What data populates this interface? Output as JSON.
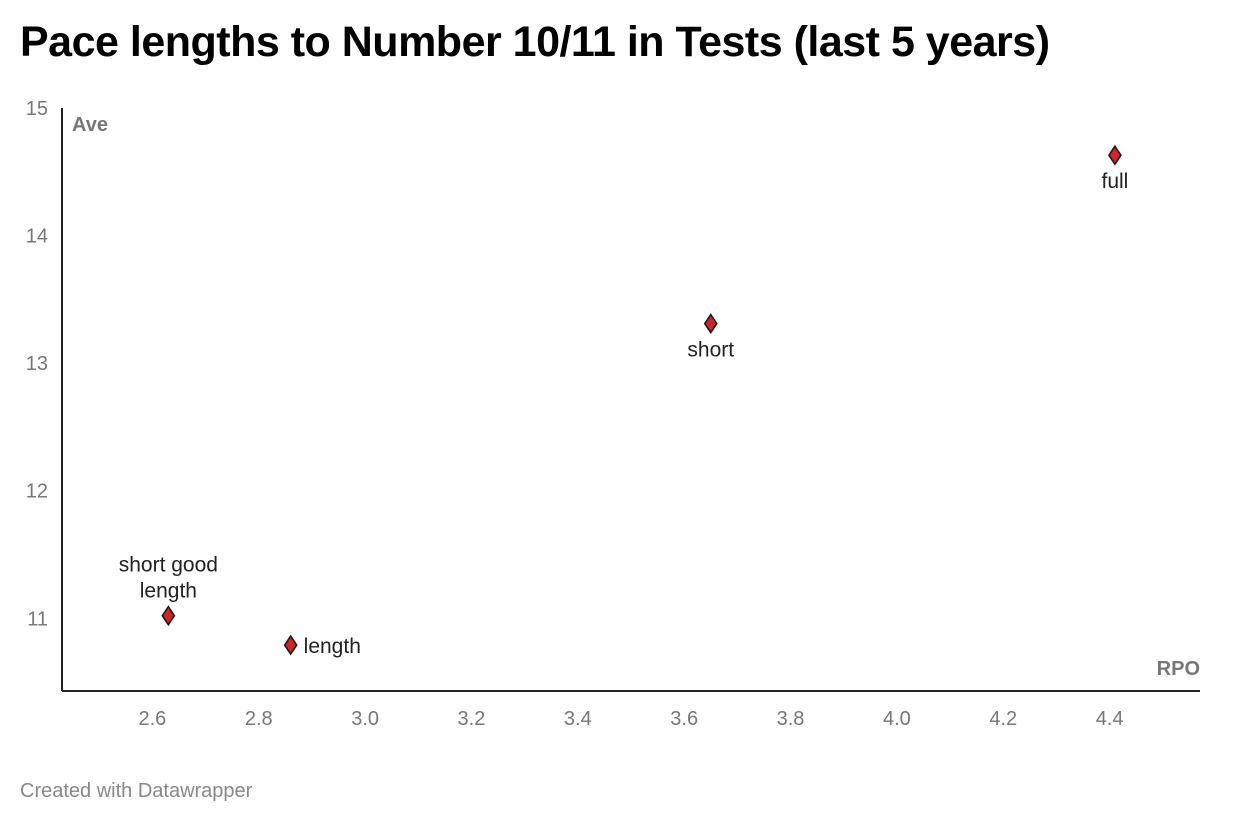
{
  "title": "Pace lengths to Number 10/11 in Tests (last 5 years)",
  "footer": {
    "credit": "Created with Datawrapper"
  },
  "chart_data": {
    "type": "scatter",
    "title": "Pace lengths to Number 10/11 in Tests (last 5 years)",
    "xlabel": "RPO",
    "ylabel": "Ave",
    "xlim": [
      2.43,
      4.57
    ],
    "ylim": [
      10.43,
      15
    ],
    "xticks": [
      2.6,
      2.8,
      3.0,
      3.2,
      3.4,
      3.6,
      3.8,
      4.0,
      4.2,
      4.4
    ],
    "xtick_labels": [
      "2.6",
      "2.8",
      "3.0",
      "3.2",
      "3.4",
      "3.6",
      "3.8",
      "4.0",
      "4.2",
      "4.4"
    ],
    "yticks": [
      11,
      12,
      13,
      14,
      15
    ],
    "ytick_labels": [
      "11",
      "12",
      "13",
      "14",
      "15"
    ],
    "grid": false,
    "marker": "diamond",
    "marker_color": "#d0242b",
    "points": [
      {
        "label": "short good length",
        "label_lines": [
          "short good",
          "length"
        ],
        "label_side": "above",
        "x": 2.63,
        "y": 11.02
      },
      {
        "label": "length",
        "label_lines": [
          "length"
        ],
        "label_side": "right",
        "x": 2.86,
        "y": 10.79
      },
      {
        "label": "short",
        "label_lines": [
          "short"
        ],
        "label_side": "below",
        "x": 3.65,
        "y": 13.31
      },
      {
        "label": "full",
        "label_lines": [
          "full"
        ],
        "label_side": "below",
        "x": 4.41,
        "y": 14.63
      }
    ]
  }
}
